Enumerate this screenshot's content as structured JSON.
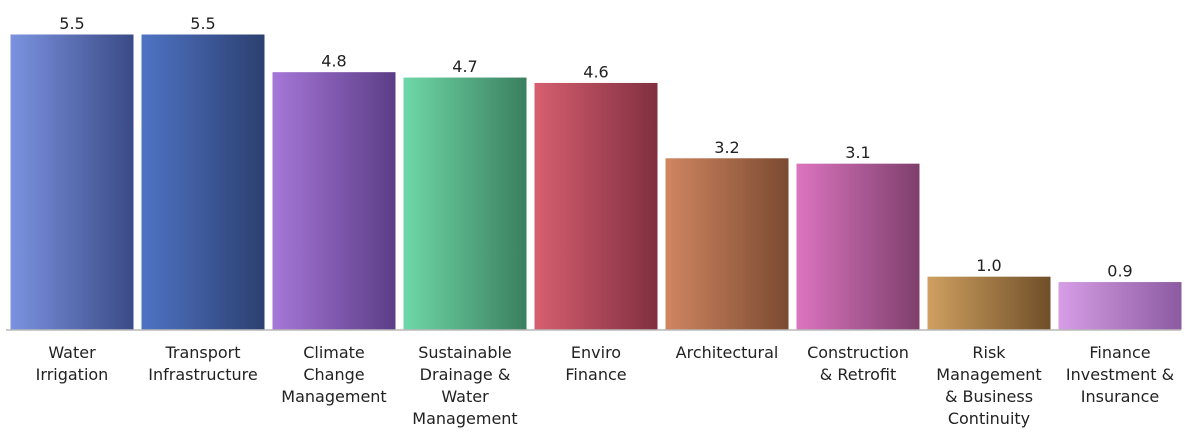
{
  "chart_data": {
    "type": "bar",
    "categories": [
      [
        "Water",
        "Irrigation"
      ],
      [
        "Transport",
        "Infrastructure"
      ],
      [
        "Climate",
        "Change",
        "Management"
      ],
      [
        "Sustainable",
        "Drainage &",
        "Water",
        "Management"
      ],
      [
        "Enviro",
        "Finance"
      ],
      [
        "Architectural"
      ],
      [
        "Construction",
        "& Retrofit"
      ],
      [
        "Risk",
        "Management",
        "& Business",
        "Continuity"
      ],
      [
        "Finance",
        "Investment &",
        "Insurance"
      ]
    ],
    "values": [
      5.5,
      5.5,
      4.8,
      4.7,
      4.6,
      3.2,
      3.1,
      1.0,
      0.9
    ],
    "value_labels": [
      "5.5",
      "5.5",
      "4.8",
      "4.7",
      "4.6",
      "3.2",
      "3.1",
      "1.0",
      "0.9"
    ],
    "colors": [
      [
        "#7b93e0",
        "#3a4a86"
      ],
      [
        "#4f74c4",
        "#2c3f70"
      ],
      [
        "#a677d8",
        "#5b3d86"
      ],
      [
        "#6fd8a8",
        "#3a7f5f"
      ],
      [
        "#d65f70",
        "#7f2f3f"
      ],
      [
        "#d08661",
        "#7a4a30"
      ],
      [
        "#dd74c0",
        "#7d3f6c"
      ],
      [
        "#cfa060",
        "#6f4f29"
      ],
      [
        "#d79ee6",
        "#8b5aa0"
      ]
    ],
    "ylim": [
      0,
      5.5
    ],
    "grid": false,
    "legend": "none",
    "title": "",
    "xlabel": "",
    "ylabel": ""
  }
}
